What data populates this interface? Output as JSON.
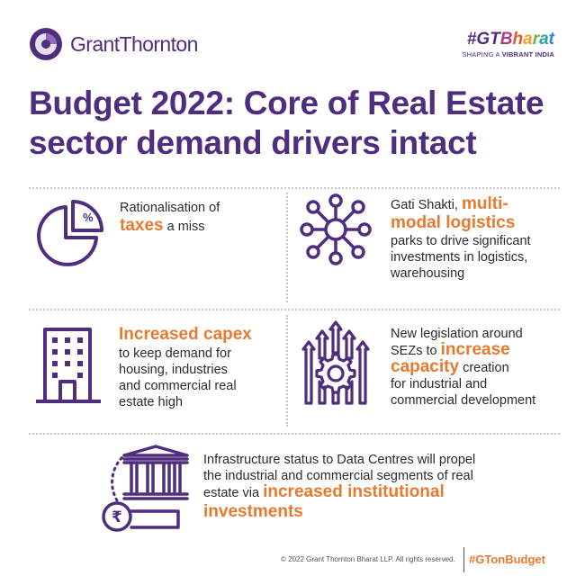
{
  "brand": {
    "name": "GrantThornton",
    "tagline_hash": "#GT",
    "tagline_word": "Bharat",
    "tagline_sub_prefix": "SHAPING A ",
    "tagline_sub_bold": "VIBRANT INDIA",
    "accent": "#4f2d7f",
    "highlight": "#e8792e"
  },
  "title": {
    "line1": "Budget 2022: Core of Real Estate",
    "line2": "sector demand drivers intact"
  },
  "cells": [
    {
      "icon": "pie-chart-percent-icon",
      "pre": "Rationalisation of",
      "highlight": "taxes",
      "post": " a miss"
    },
    {
      "icon": "network-hub-icon",
      "pre": "Gati Shakti, ",
      "highlight1": "multi-",
      "highlight2": "modal logistics",
      "post1": "parks to drive significant",
      "post2": "investments  in logistics,",
      "post3": "warehousing"
    },
    {
      "icon": "office-building-icon",
      "highlight": "Increased capex",
      "post1": "to keep demand for",
      "post2": "housing, industries",
      "post3": "and commercial real",
      "post4": "estate high"
    },
    {
      "icon": "gear-arrows-icon",
      "pre": "New legislation around",
      "pre2": "SEZs to ",
      "highlight1": "increase",
      "highlight2": "capacity",
      "post1": "  creation",
      "post2": "for industrial and",
      "post3": "commercial development"
    },
    {
      "icon": "rupee-institution-icon",
      "line1": "Infrastructure  status to Data Centres will propel",
      "line2": "the industrial and commercial segments of real",
      "line3_pre": "estate via ",
      "highlight1": "increased institutional",
      "highlight2": "investments"
    }
  ],
  "footer": {
    "copyright": "© 2022  Grant Thornton  Bharat  LLP.  All rights  reserved.",
    "hashtag": "#GTonBudget"
  }
}
